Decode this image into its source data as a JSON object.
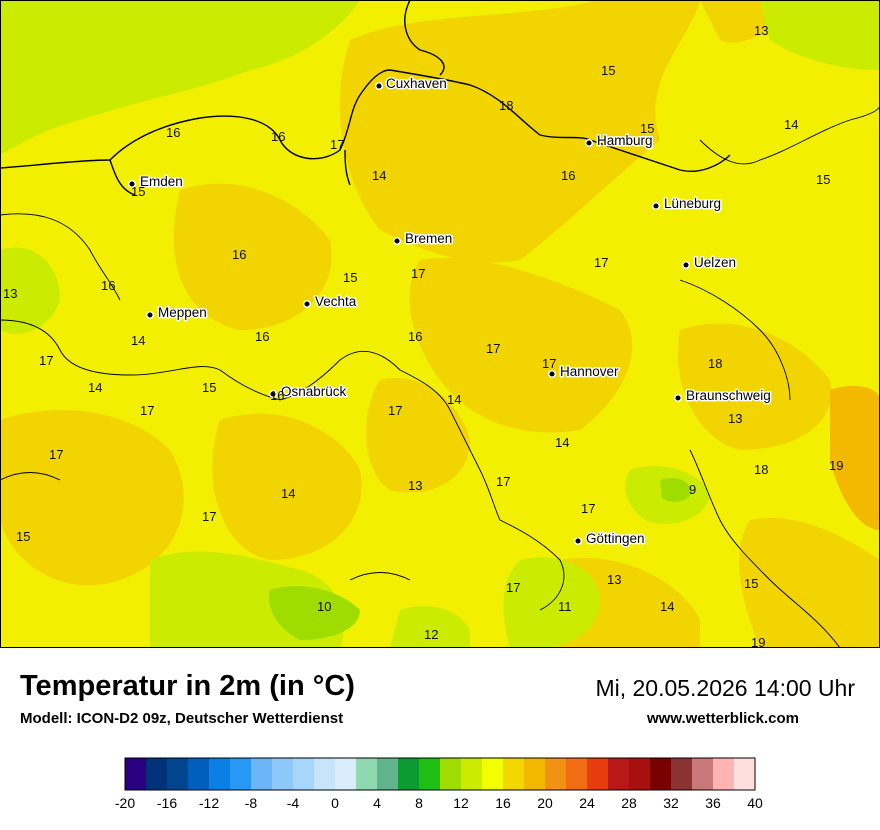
{
  "header": {
    "title": "Temperatur in 2m (in °C)",
    "model": "Modell: ICON-D2 09z, Deutscher Wetterdienst",
    "datetime": "Mi, 20.05.2026 14:00 Uhr",
    "website": "www.wetterblick.com"
  },
  "cities": [
    {
      "name": "Cuxhaven"
    },
    {
      "name": "Hamburg"
    },
    {
      "name": "Emden"
    },
    {
      "name": "Lüneburg"
    },
    {
      "name": "Bremen"
    },
    {
      "name": "Uelzen"
    },
    {
      "name": "Vechta"
    },
    {
      "name": "Meppen"
    },
    {
      "name": "Hannover"
    },
    {
      "name": "Osnabrück"
    },
    {
      "name": "Braunschweig"
    },
    {
      "name": "Göttingen"
    }
  ],
  "temperatures": [
    "13",
    "15",
    "18",
    "15",
    "16",
    "16",
    "17",
    "14",
    "16",
    "14",
    "15",
    "15",
    "16",
    "17",
    "17",
    "15",
    "16",
    "13",
    "16",
    "16",
    "14",
    "17",
    "17",
    "18",
    "14",
    "15",
    "17",
    "17",
    "13",
    "14",
    "17",
    "14",
    "18",
    "19",
    "13",
    "14",
    "17",
    "9",
    "17",
    "15",
    "17",
    "17",
    "13",
    "15",
    "10",
    "11",
    "17",
    "12",
    "19",
    "14",
    "16",
    "14"
  ],
  "legend": {
    "colors": [
      "#2a0080",
      "#00327a",
      "#00468f",
      "#005fbd",
      "#0a7fe6",
      "#2898f5",
      "#6cb6f7",
      "#8dc8f8",
      "#a8d5fa",
      "#c6e4fc",
      "#dbedfd",
      "#8fd8b0",
      "#60b38a",
      "#0c9a32",
      "#1ebe12",
      "#9fdc00",
      "#cbeb00",
      "#f2ff00",
      "#f2d700",
      "#f2b800",
      "#f29213",
      "#f06d13",
      "#e83c0e",
      "#b81818",
      "#a80f0f",
      "#7a0000",
      "#8b3232",
      "#c87878",
      "#ffb4b4",
      "#ffdede"
    ],
    "ticks": [
      "-20",
      "-16",
      "-12",
      "-8",
      "-4",
      "0",
      "4",
      "8",
      "12",
      "16",
      "20",
      "24",
      "28",
      "32",
      "36",
      "40"
    ]
  }
}
